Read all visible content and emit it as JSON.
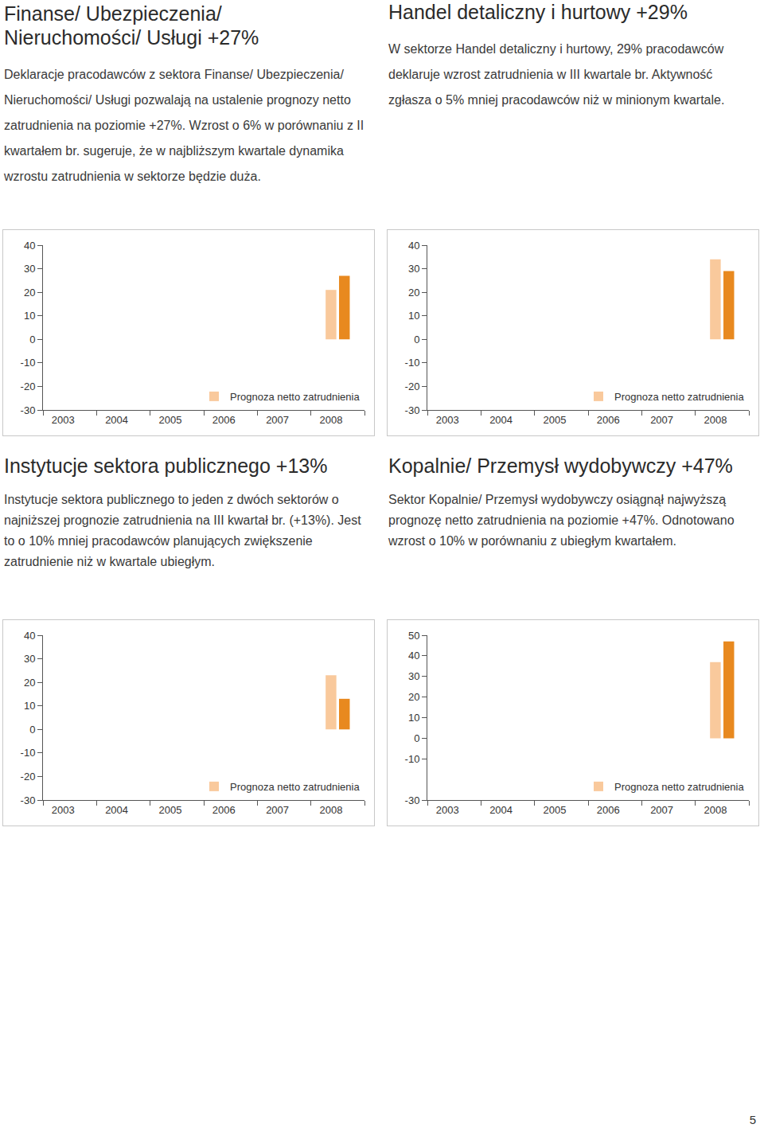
{
  "page_number": "5",
  "chart_data": [
    {
      "type": "bar",
      "title": "Finanse/ Ubezpieczenia/ Nieruchomości/ Usługi +27%",
      "subtitle": "Deklaracje pracodawców z sektora Finanse/ Ubezpieczenia/ Nieruchomości/ Usługi pozwalają na ustalenie prognozy netto zatrudnienia na poziomie +27%. Wzrost o 6% w porównaniu z II kwartałem br. sugeruje, że w najbliższym kwartale dynamika wzrostu zatrudnienia w sektorze będzie duża.",
      "categories": [
        null,
        "2003",
        null,
        null,
        null,
        "2004",
        null,
        null,
        null,
        "2005",
        null,
        null,
        null,
        "2006",
        null,
        null,
        null,
        "2007",
        null,
        null,
        null,
        "2008",
        null,
        null
      ],
      "series": [
        {
          "name": "Prognoza netto zatrudnienia",
          "color": "#f9c99c",
          "values": [
            null,
            null,
            null,
            null,
            null,
            null,
            null,
            null,
            null,
            null,
            null,
            null,
            null,
            null,
            null,
            null,
            null,
            null,
            null,
            null,
            null,
            21,
            null,
            null
          ]
        },
        {
          "color": "#e8891f",
          "values": [
            null,
            null,
            null,
            null,
            null,
            null,
            null,
            null,
            null,
            null,
            null,
            null,
            null,
            null,
            null,
            null,
            null,
            null,
            null,
            null,
            null,
            null,
            27,
            null
          ]
        }
      ],
      "ylim": [
        -30,
        40
      ],
      "yticks": [
        -30,
        -20,
        -10,
        0,
        10,
        20,
        30,
        40
      ],
      "grid": false,
      "legend": "lower right"
    },
    {
      "type": "bar",
      "title": "Handel detaliczny i hurtowy +29%",
      "subtitle": "W sektorze Handel detaliczny i hurtowy, 29% pracodawców deklaruje wzrost zatrudnienia w III kwartale br. Aktywność zgłasza o 5% mniej pracodawców niż w minionym kwartale.",
      "categories": [
        null,
        "2003",
        null,
        null,
        null,
        "2004",
        null,
        null,
        null,
        "2005",
        null,
        null,
        null,
        "2006",
        null,
        null,
        null,
        "2007",
        null,
        null,
        null,
        "2008",
        null,
        null
      ],
      "series": [
        {
          "name": "Prognoza netto zatrudnienia",
          "color": "#f9c99c",
          "values": [
            null,
            null,
            null,
            null,
            null,
            null,
            null,
            null,
            null,
            null,
            null,
            null,
            null,
            null,
            null,
            null,
            null,
            null,
            null,
            null,
            null,
            34,
            null,
            null
          ]
        },
        {
          "color": "#e8891f",
          "values": [
            null,
            null,
            null,
            null,
            null,
            null,
            null,
            null,
            null,
            null,
            null,
            null,
            null,
            null,
            null,
            null,
            null,
            null,
            null,
            null,
            null,
            null,
            29,
            null
          ]
        }
      ],
      "ylim": [
        -30,
        40
      ],
      "yticks": [
        -30,
        -20,
        -10,
        0,
        10,
        20,
        30,
        40
      ],
      "grid": false,
      "legend": "lower right"
    },
    {
      "type": "bar",
      "title": "Instytucje sektora publicznego +13%",
      "subtitle": "Instytucje sektora publicznego to jeden z dwóch sektorów o najniższej prognozie zatrudnienia na III kwartał br. (+13%). Jest to o 10% mniej pracodawców planujących zwiększenie zatrudnienie niż w kwartale ubiegłym.",
      "categories": [
        null,
        "2003",
        null,
        null,
        null,
        "2004",
        null,
        null,
        null,
        "2005",
        null,
        null,
        null,
        "2006",
        null,
        null,
        null,
        "2007",
        null,
        null,
        null,
        "2008",
        null,
        null
      ],
      "series": [
        {
          "name": "Prognoza netto zatrudnienia",
          "color": "#f9c99c",
          "values": [
            null,
            null,
            null,
            null,
            null,
            null,
            null,
            null,
            null,
            null,
            null,
            null,
            null,
            null,
            null,
            null,
            null,
            null,
            null,
            null,
            null,
            23,
            null,
            null
          ]
        },
        {
          "color": "#e8891f",
          "values": [
            null,
            null,
            null,
            null,
            null,
            null,
            null,
            null,
            null,
            null,
            null,
            null,
            null,
            null,
            null,
            null,
            null,
            null,
            null,
            null,
            null,
            null,
            13,
            null
          ]
        }
      ],
      "ylim": [
        -30,
        40
      ],
      "yticks": [
        -30,
        -20,
        -10,
        0,
        10,
        20,
        30,
        40
      ],
      "grid": false,
      "legend": "lower right"
    },
    {
      "type": "bar",
      "title": "Kopalnie/ Przemysł wydobywczy +47%",
      "subtitle": "Sektor Kopalnie/ Przemysł wydobywczy osiągnął najwyższą prognozę netto zatrudnienia na poziomie +47%. Odnotowano wzrost o 10% w porównaniu z ubiegłym kwartałem.",
      "categories": [
        null,
        "2003",
        null,
        null,
        null,
        "2004",
        null,
        null,
        null,
        "2005",
        null,
        null,
        null,
        "2006",
        null,
        null,
        null,
        "2007",
        null,
        null,
        null,
        "2008",
        null,
        null
      ],
      "series": [
        {
          "name": "Prognoza netto zatrudnienia",
          "color": "#f9c99c",
          "values": [
            null,
            null,
            null,
            null,
            null,
            null,
            null,
            null,
            null,
            null,
            null,
            null,
            null,
            null,
            null,
            null,
            null,
            null,
            null,
            null,
            null,
            37,
            null,
            null
          ]
        },
        {
          "color": "#e8891f",
          "values": [
            null,
            null,
            null,
            null,
            null,
            null,
            null,
            null,
            null,
            null,
            null,
            null,
            null,
            null,
            null,
            null,
            null,
            null,
            null,
            null,
            null,
            null,
            47,
            null
          ]
        }
      ],
      "ylim": [
        -30,
        50
      ],
      "yticks": [
        -30,
        -10,
        0,
        10,
        20,
        30,
        40,
        50
      ],
      "grid": false,
      "legend": "lower right"
    }
  ]
}
